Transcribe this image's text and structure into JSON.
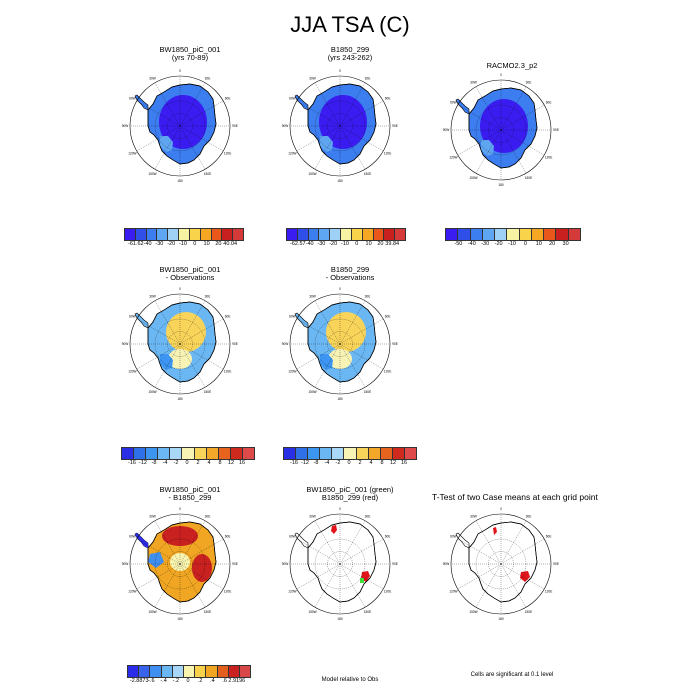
{
  "title": "JJA TSA (C)",
  "colors": {
    "abs_scale": [
      "#3b1cf0",
      "#2f4fe8",
      "#3c7df0",
      "#5fa6f2",
      "#9fd0f5",
      "#f6f3a3",
      "#f9d34a",
      "#f5a623",
      "#e9571b",
      "#c8201e",
      "#d43a3a"
    ],
    "diff_scale": [
      "#2a2fe6",
      "#2f6fe8",
      "#3c95f0",
      "#6bb7f3",
      "#a8d7f7",
      "#f7f3b5",
      "#f8d45a",
      "#f3a82a",
      "#e6641d",
      "#cf2a1e",
      "#de4a4a"
    ],
    "tdiff_scale": [
      "#2b2bea",
      "#3a63ec",
      "#3f8ff0",
      "#6ab6f3",
      "#a7d6f7",
      "#f8f4b0",
      "#f6d149",
      "#f1a623",
      "#e2601b",
      "#c92020",
      "#d94848"
    ],
    "land": "#ffffff",
    "coast": "#000000",
    "grid": "#000000",
    "sig_green": "#3fe03a",
    "sig_red": "#e1141a"
  },
  "panels": [
    {
      "title1": "BW1850_piC_001",
      "title2": "(yrs 70-89)",
      "kind": "abs",
      "cbar_labels": [
        "-61.62",
        "-40",
        "-30",
        "-20",
        "-10",
        "0",
        "10",
        "20",
        "40.04"
      ]
    },
    {
      "title1": "B1850_299",
      "title2": "(yrs 243-262)",
      "kind": "abs",
      "cbar_labels": [
        "-62.57",
        "-40",
        "-30",
        "-20",
        "-10",
        "0",
        "10",
        "20",
        "39.84"
      ]
    },
    {
      "title1": "RACMO2.3_p2",
      "title2": "",
      "kind": "abs",
      "cbar_labels": [
        "-50",
        "-40",
        "-30",
        "-20",
        "-10",
        "0",
        "10",
        "20",
        "30"
      ]
    },
    {
      "title1": "BW1850_piC_001",
      "title2": "- Observations",
      "kind": "diff",
      "cbar_labels": [
        "-16",
        "-12",
        "-8",
        "-4",
        "-2",
        "0",
        "2",
        "4",
        "8",
        "12",
        "16"
      ]
    },
    {
      "title1": "B1850_299",
      "title2": "- Observations",
      "kind": "diff",
      "cbar_labels": [
        "-16",
        "-12",
        "-8",
        "-4",
        "-2",
        "0",
        "2",
        "4",
        "8",
        "12",
        "16"
      ]
    },
    {
      "title1": "BW1850_piC_001",
      "title2": "- B1850_299",
      "kind": "tdiff",
      "cbar_labels": [
        "-2.8873",
        "-.6",
        "-.4",
        "-.2",
        "0",
        ".2",
        ".4",
        ".6",
        "2.9196"
      ]
    },
    {
      "title1": "BW1850_piC_001 (green)",
      "title2": "B1850_299 (red)",
      "kind": "sig",
      "note": "Model relative to Obs"
    },
    {
      "title1": "T-Test of two Case means at each grid point",
      "title2": "",
      "kind": "ttest",
      "note": "Cells are significant at 0.1 level"
    }
  ],
  "lon_labels": [
    "0",
    "30E",
    "60E",
    "90E",
    "120E",
    "150E",
    "180",
    "150W",
    "120W",
    "90W",
    "60W",
    "30W"
  ]
}
